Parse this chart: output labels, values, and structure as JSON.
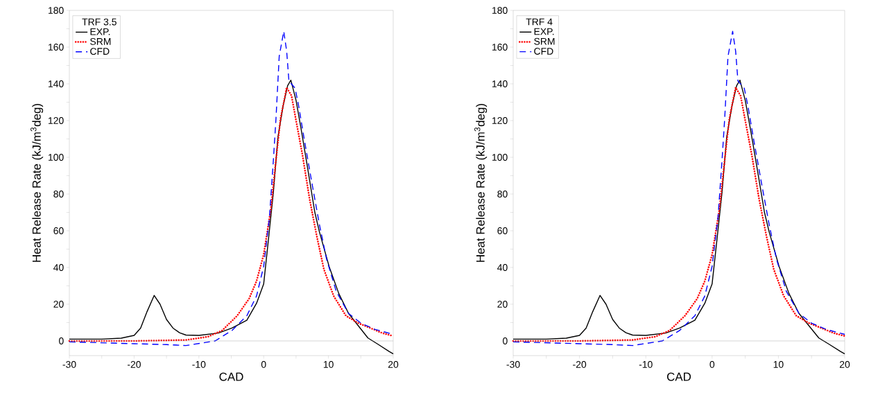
{
  "chart_data": [
    {
      "type": "line",
      "xlabel": "CAD",
      "ylabel": "Heat Release Rate (kJ/m$^{3}$deg)",
      "legend_title": "TRF 3.5",
      "legend": "top left",
      "xlim": [
        -30,
        20
      ],
      "ylim": [
        -8,
        180
      ],
      "xticks": [
        -30,
        {
          "value": -25,
          "label": null
        },
        -20,
        {
          "value": -15,
          "label": null
        },
        -10,
        {
          "value": -5,
          "label": null
        },
        0,
        {
          "value": 5,
          "label": null
        },
        10,
        {
          "value": 15,
          "label": null
        },
        20
      ],
      "yticks": [
        0,
        {
          "value": 10,
          "label": null
        },
        20,
        {
          "value": 30,
          "label": null
        },
        40,
        {
          "value": 50,
          "label": null
        },
        60,
        {
          "value": 70,
          "label": null
        },
        80,
        {
          "value": 90,
          "label": null
        },
        100,
        {
          "value": 110,
          "label": null
        },
        120,
        {
          "value": 130,
          "label": null
        },
        140,
        {
          "value": 150,
          "label": null
        },
        160,
        {
          "value": 170,
          "label": null
        },
        180
      ],
      "series": [
        {
          "name": "EXP.",
          "color": "#000000",
          "line_style": "solid",
          "x": [
            -30,
            -25,
            -22,
            -20,
            -19,
            -18,
            -16.9,
            -16,
            -15,
            -14,
            -13,
            -12,
            -10,
            -7,
            -4.9,
            -2.6,
            -1.1,
            0,
            0.7,
            1.5,
            2.2,
            3,
            3.7,
            4.2,
            5,
            5.8,
            6.7,
            7.9,
            8.6,
            10.1,
            11.6,
            13.1,
            14.6,
            16.1,
            17.6,
            19.4,
            20
          ],
          "values": [
            1,
            1,
            1.5,
            3,
            7,
            16,
            24.8,
            20,
            11.7,
            7,
            4.5,
            3.2,
            3,
            4.3,
            7,
            11.3,
            20.5,
            31,
            54,
            81,
            111,
            128,
            139,
            142,
            131,
            115,
            96,
            70,
            59.5,
            40.6,
            25.8,
            15,
            8.3,
            1.6,
            -1.7,
            -5.8,
            -7
          ]
        },
        {
          "name": "SRM",
          "color": "#ff0000",
          "line_style": "dotted",
          "x": [
            -30,
            -20,
            -12,
            -8.6,
            -6.4,
            -4.1,
            -2.25,
            -1.1,
            0,
            1.1,
            1.9,
            2.6,
            3.55,
            4.3,
            5,
            6,
            7.1,
            8.2,
            9.3,
            10.8,
            12.7,
            14.6,
            16.5,
            18.3,
            20
          ],
          "values": [
            0,
            0,
            0.5,
            2.3,
            5.7,
            13.7,
            23,
            32.6,
            47,
            71.6,
            98.5,
            121,
            138,
            133.5,
            120,
            101,
            77,
            57,
            39,
            24.5,
            13.7,
            9.7,
            7,
            4.3,
            2.7
          ]
        },
        {
          "name": "CFD",
          "color": "#0000ff",
          "line_style": "dashed",
          "x": [
            -30,
            -20,
            -15,
            -12,
            -7.5,
            -4.9,
            -2.6,
            -1.1,
            0,
            0.9,
            1.5,
            1.9,
            2.4,
            3.1,
            3.55,
            3.9,
            4.85,
            5.4,
            6.35,
            7.5,
            8.6,
            9.7,
            11.2,
            13.1,
            15,
            17.2,
            20
          ],
          "values": [
            -0.5,
            -1.5,
            -2,
            -2.5,
            0,
            5.7,
            13.7,
            24.5,
            40.6,
            67.6,
            98.5,
            121,
            155,
            168.6,
            157.8,
            141.6,
            137.6,
            128,
            108,
            85,
            63.5,
            44.7,
            27,
            15,
            9.7,
            6.3,
            3.6
          ]
        }
      ]
    },
    {
      "type": "line",
      "xlabel": "CAD",
      "ylabel": "Heat Release Rate (kJ/m$^{3}$deg)",
      "legend_title": "TRF 4",
      "legend": "top left",
      "xlim": [
        -30,
        20
      ],
      "ylim": [
        -8,
        180
      ],
      "xticks": [
        -30,
        {
          "value": -25,
          "label": null
        },
        -20,
        {
          "value": -15,
          "label": null
        },
        -10,
        {
          "value": -5,
          "label": null
        },
        0,
        {
          "value": 5,
          "label": null
        },
        10,
        {
          "value": 15,
          "label": null
        },
        20
      ],
      "yticks": [
        0,
        {
          "value": 10,
          "label": null
        },
        20,
        {
          "value": 30,
          "label": null
        },
        40,
        {
          "value": 50,
          "label": null
        },
        60,
        {
          "value": 70,
          "label": null
        },
        80,
        {
          "value": 90,
          "label": null
        },
        100,
        {
          "value": 110,
          "label": null
        },
        120,
        {
          "value": 130,
          "label": null
        },
        140,
        {
          "value": 150,
          "label": null
        },
        160,
        {
          "value": 170,
          "label": null
        },
        180
      ],
      "series": [
        {
          "name": "EXP.",
          "color": "#000000",
          "line_style": "solid",
          "x": [
            -30,
            -25,
            -22,
            -20,
            -19,
            -18,
            -16.9,
            -16,
            -15,
            -14,
            -13,
            -12,
            -10,
            -7,
            -4.9,
            -2.6,
            -1.1,
            0,
            0.7,
            1.5,
            2.2,
            3,
            3.7,
            4.2,
            5,
            5.8,
            6.7,
            7.9,
            8.6,
            10.1,
            11.6,
            13.1,
            14.6,
            16.1,
            17.6,
            19.4,
            20
          ],
          "values": [
            1,
            1,
            1.5,
            3,
            7,
            16,
            24.8,
            20,
            11.7,
            7,
            4.5,
            3.2,
            3,
            4.3,
            7,
            11.3,
            20.5,
            31,
            54,
            81,
            111,
            128,
            139,
            142,
            131,
            115,
            96,
            70,
            59.5,
            40.6,
            25.8,
            15,
            8.3,
            1.6,
            -1.7,
            -5.8,
            -7
          ]
        },
        {
          "name": "SRM",
          "color": "#ff0000",
          "line_style": "dotted",
          "x": [
            -30,
            -20,
            -12,
            -8.6,
            -6.4,
            -4.1,
            -2.25,
            -1.1,
            0,
            1.1,
            1.9,
            2.6,
            3.55,
            4.3,
            5,
            6,
            7.1,
            8.2,
            9.3,
            10.8,
            12.7,
            14.6,
            16.5,
            18.3,
            20
          ],
          "values": [
            0,
            0,
            0.5,
            2.3,
            5.7,
            13.7,
            23,
            32.6,
            47,
            71.6,
            98.5,
            121,
            138,
            133.5,
            120,
            101,
            77,
            57,
            39,
            24.5,
            13.7,
            9.7,
            7,
            4.3,
            2.7
          ]
        },
        {
          "name": "CFD",
          "color": "#0000ff",
          "line_style": "dashed",
          "x": [
            -30,
            -20,
            -15,
            -12,
            -7.5,
            -4.9,
            -2.6,
            -1.1,
            0,
            0.9,
            1.5,
            1.9,
            2.4,
            3.1,
            3.55,
            3.9,
            4.85,
            5.4,
            6.35,
            7.5,
            8.6,
            9.7,
            11.2,
            13.1,
            15,
            17.2,
            20
          ],
          "values": [
            -0.5,
            -1.5,
            -2,
            -2.5,
            0,
            5.7,
            13.7,
            24.5,
            40.6,
            67.6,
            98.5,
            121,
            155,
            168.6,
            157.8,
            141.6,
            137.6,
            128,
            108,
            85,
            63.5,
            44.7,
            27,
            15,
            9.7,
            6.3,
            3.6
          ]
        }
      ]
    }
  ]
}
